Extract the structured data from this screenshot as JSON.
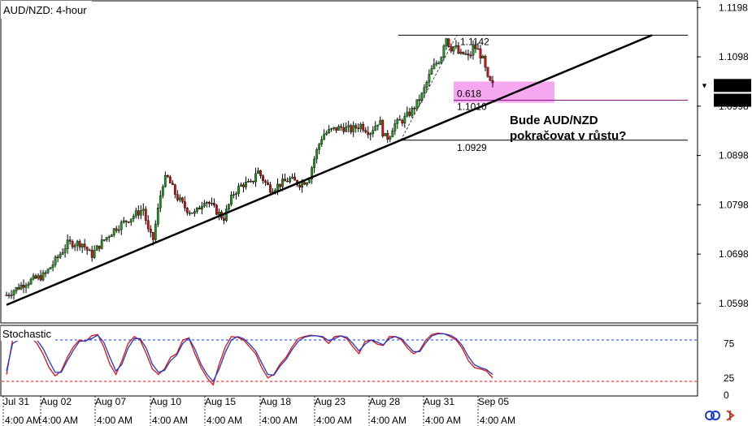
{
  "chart_data": [
    {
      "type": "candlestick",
      "title": "AUD/NZD: 4-hour",
      "ylim": [
        1.056,
        1.121
      ],
      "y_ticks": [
        "1.1198",
        "1.1098",
        "1.0998",
        "1.0898",
        "1.0798",
        "1.0698",
        "1.0598"
      ],
      "x_ticks": [
        {
          "date": "Jul 31",
          "time": "4:00 AM"
        },
        {
          "date": "Aug 02",
          "time": "4:00 AM"
        },
        {
          "date": "Aug 07",
          "time": "4:00 AM"
        },
        {
          "date": "Aug 10",
          "time": "4:00 AM"
        },
        {
          "date": "Aug 15",
          "time": "4:00 AM"
        },
        {
          "date": "Aug 18",
          "time": "4:00 AM"
        },
        {
          "date": "Aug 23",
          "time": "4:00 AM"
        },
        {
          "date": "Aug 28",
          "time": "4:00 AM"
        },
        {
          "date": "Aug 31",
          "time": "4:00 AM"
        },
        {
          "date": "Sep 05",
          "time": "4:00 AM"
        }
      ],
      "price_path": [
        [
          0,
          1.0615
        ],
        [
          4,
          1.064
        ],
        [
          8,
          1.0655
        ],
        [
          10,
          1.068
        ],
        [
          13,
          1.072
        ],
        [
          16,
          1.072
        ],
        [
          18,
          1.0695
        ],
        [
          20,
          1.072
        ],
        [
          23,
          1.075
        ],
        [
          26,
          1.077
        ],
        [
          29,
          1.079
        ],
        [
          30,
          1.0745
        ],
        [
          31,
          1.0725
        ],
        [
          33,
          1.084
        ],
        [
          34,
          1.0855
        ],
        [
          36,
          1.0815
        ],
        [
          38,
          1.079
        ],
        [
          40,
          1.078
        ],
        [
          42,
          1.081
        ],
        [
          44,
          1.079
        ],
        [
          46,
          1.077
        ],
        [
          48,
          1.082
        ],
        [
          50,
          1.084
        ],
        [
          52,
          1.084
        ],
        [
          53,
          1.087
        ],
        [
          55,
          1.084
        ],
        [
          56,
          1.083
        ],
        [
          58,
          1.084
        ],
        [
          60,
          1.085
        ],
        [
          62,
          1.084
        ],
        [
          64,
          1.085
        ],
        [
          65,
          1.0885
        ],
        [
          66,
          1.0915
        ],
        [
          67,
          1.094
        ],
        [
          69,
          1.095
        ],
        [
          71,
          1.0955
        ],
        [
          73,
          1.095
        ],
        [
          75,
          1.096
        ],
        [
          77,
          1.0945
        ],
        [
          79,
          1.097
        ],
        [
          80,
          1.0935
        ],
        [
          81,
          1.0935
        ],
        [
          82,
          1.096
        ],
        [
          84,
          1.097
        ],
        [
          86,
          1.099
        ],
        [
          88,
          1.102
        ],
        [
          90,
          1.107
        ],
        [
          91,
          1.1085
        ],
        [
          92,
          1.1095
        ],
        [
          93,
          1.1142
        ],
        [
          94,
          1.1115
        ],
        [
          95,
          1.112
        ],
        [
          96,
          1.11
        ],
        [
          97,
          1.1105
        ],
        [
          98,
          1.1095
        ],
        [
          99,
          1.112
        ],
        [
          100,
          1.111
        ],
        [
          101,
          1.109
        ],
        [
          102,
          1.105
        ],
        [
          103,
          1.104
        ]
      ],
      "price_markers": [
        "1.1040",
        "1.1010"
      ],
      "swing_high_label": "1.1142",
      "swing_low_label": "1.0929",
      "fib_level": {
        "ratio": "0.618",
        "price": "1.1010"
      },
      "annotation": [
        "Bude AUD/NZD",
        "pokračovat v růstu?"
      ],
      "colors": {
        "up": "#1a9a1a",
        "down": "#cc1010",
        "zone": "#f6a8ee",
        "fib_line": "#8b1a8b"
      }
    },
    {
      "type": "line",
      "title": "Stochastic",
      "ylim": [
        0,
        100
      ],
      "y_ticks": [
        "75",
        "25",
        "0"
      ],
      "levels": {
        "upper": 80,
        "lower": 20
      },
      "series": [
        {
          "values": [
            30,
            80,
            85,
            88,
            84,
            75,
            60,
            40,
            28,
            35,
            55,
            70,
            80,
            78,
            86,
            88,
            70,
            45,
            30,
            50,
            75,
            85,
            80,
            60,
            38,
            30,
            38,
            55,
            60,
            80,
            83,
            60,
            40,
            25,
            15,
            45,
            70,
            85,
            84,
            80,
            70,
            60,
            40,
            25,
            30,
            45,
            55,
            70,
            82,
            85,
            87,
            86,
            84,
            75,
            85,
            86,
            82,
            70,
            60,
            78,
            80,
            74,
            72,
            85,
            85,
            80,
            68,
            60,
            65,
            80,
            88,
            90,
            89,
            85,
            80,
            68,
            50,
            40,
            38,
            35,
            25
          ]
        },
        {
          "values": [
            35,
            75,
            80,
            85,
            86,
            80,
            68,
            50,
            33,
            33,
            50,
            65,
            78,
            79,
            82,
            87,
            77,
            55,
            35,
            45,
            68,
            82,
            82,
            68,
            45,
            33,
            36,
            50,
            58,
            75,
            83,
            67,
            45,
            30,
            20,
            38,
            62,
            80,
            85,
            82,
            74,
            64,
            47,
            30,
            29,
            42,
            52,
            66,
            78,
            84,
            86,
            86,
            85,
            79,
            82,
            86,
            84,
            75,
            64,
            74,
            80,
            77,
            73,
            82,
            85,
            82,
            72,
            63,
            63,
            76,
            86,
            89,
            89,
            87,
            82,
            72,
            56,
            44,
            40,
            37,
            30
          ]
        }
      ],
      "colors": {
        "main": "#1a3ad4",
        "signal": "#dd1111",
        "upper_level": "#1a3ad4",
        "lower_level": "#dd1111"
      }
    }
  ]
}
